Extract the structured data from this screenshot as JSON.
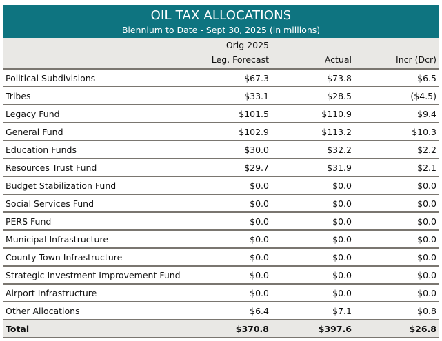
{
  "title": "OIL TAX ALLOCATIONS",
  "subtitle": "Biennium to Date - Sept 30, 2025 (in millions)",
  "columns": {
    "forecast_line1": "Orig 2025",
    "forecast_line2": "Leg. Forecast",
    "actual": "Actual",
    "diff": "Incr (Dcr)"
  },
  "rows": [
    {
      "label": "Political Subdivisions",
      "forecast": "$67.3",
      "actual": "$73.8",
      "diff": "$6.5"
    },
    {
      "label": "Tribes",
      "forecast": "$33.1",
      "actual": "$28.5",
      "diff": "($4.5)"
    },
    {
      "label": "Legacy Fund",
      "forecast": "$101.5",
      "actual": "$110.9",
      "diff": "$9.4"
    },
    {
      "label": "General Fund",
      "forecast": "$102.9",
      "actual": "$113.2",
      "diff": "$10.3"
    },
    {
      "label": "Education Funds",
      "forecast": "$30.0",
      "actual": "$32.2",
      "diff": "$2.2"
    },
    {
      "label": "Resources Trust Fund",
      "forecast": "$29.7",
      "actual": "$31.9",
      "diff": "$2.1"
    },
    {
      "label": "Budget Stabilization Fund",
      "forecast": "$0.0",
      "actual": "$0.0",
      "diff": "$0.0"
    },
    {
      "label": "Social Services Fund",
      "forecast": "$0.0",
      "actual": "$0.0",
      "diff": "$0.0"
    },
    {
      "label": "PERS Fund",
      "forecast": "$0.0",
      "actual": "$0.0",
      "diff": "$0.0"
    },
    {
      "label": "Municipal Infrastructure",
      "forecast": "$0.0",
      "actual": "$0.0",
      "diff": "$0.0"
    },
    {
      "label": "County Town Infrastructure",
      "forecast": "$0.0",
      "actual": "$0.0",
      "diff": "$0.0"
    },
    {
      "label": "Strategic Investment Improvement Fund",
      "forecast": "$0.0",
      "actual": "$0.0",
      "diff": "$0.0"
    },
    {
      "label": "Airport Infrastructure",
      "forecast": "$0.0",
      "actual": "$0.0",
      "diff": "$0.0"
    },
    {
      "label": "Other Allocations",
      "forecast": "$6.4",
      "actual": "$7.1",
      "diff": "$0.8"
    }
  ],
  "total": {
    "label": "Total",
    "forecast": "$370.8",
    "actual": "$397.6",
    "diff": "$26.8"
  },
  "colors": {
    "banner": "#0e7480",
    "header_bg": "#e9e8e5",
    "rule": "#7a7670"
  }
}
